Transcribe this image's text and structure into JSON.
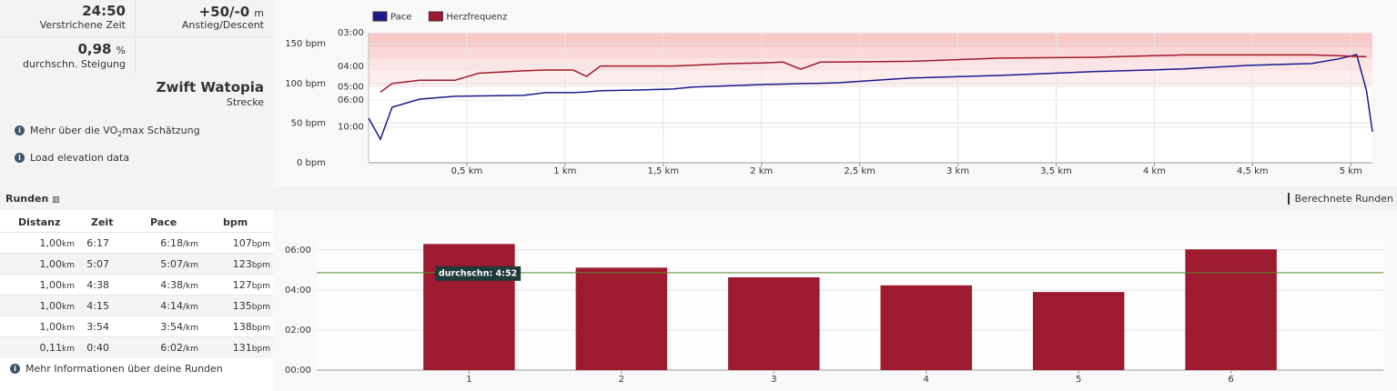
{
  "stats": [
    {
      "value": "24:50",
      "label": "Verstrichene Zeit"
    },
    {
      "value": "+50/-0",
      "unit": "m",
      "label": "Anstieg/Descent"
    },
    {
      "value": "0,98",
      "unit": "%",
      "label": "durchschn. Steigung"
    },
    {
      "value": "Zwift Watopia",
      "label": "Strecke"
    }
  ],
  "links": {
    "vo2max": [
      "Mehr über die VO",
      "2",
      "max Schätzung"
    ],
    "elevation": "Load elevation data",
    "laps_info": "Mehr Informationen über deine Runden"
  },
  "laps": {
    "title": "Runden",
    "calculated": "Berechnete Runden",
    "columns": [
      "Distanz",
      "Zeit",
      "Pace",
      "bpm"
    ],
    "rows": [
      [
        "1,00",
        "km",
        "6:17",
        "6:18",
        "/km",
        "107",
        "bpm"
      ],
      [
        "1,00",
        "km",
        "5:07",
        "5:07",
        "/km",
        "123",
        "bpm"
      ],
      [
        "1,00",
        "km",
        "4:38",
        "4:38",
        "/km",
        "127",
        "bpm"
      ],
      [
        "1,00",
        "km",
        "4:15",
        "4:14",
        "/km",
        "135",
        "bpm"
      ],
      [
        "1,00",
        "km",
        "3:54",
        "3:54",
        "/km",
        "138",
        "bpm"
      ],
      [
        "0,11",
        "km",
        "0:40",
        "6:02",
        "/km",
        "131",
        "bpm"
      ]
    ]
  },
  "chart_data": [
    {
      "type": "line",
      "x": [
        0,
        0.06,
        0.12,
        0.26,
        0.44,
        0.56,
        0.79,
        0.9,
        1.04,
        1.11,
        1.18,
        1.37,
        1.55,
        1.65,
        1.83,
        2.02,
        2.11,
        2.2,
        2.3,
        2.39,
        2.76,
        3.22,
        3.69,
        4.15,
        4.48,
        4.8,
        4.94,
        5.03,
        5.08,
        5.11
      ],
      "series": [
        {
          "name": "Pace",
          "color": "#1a1a8c",
          "axis": "y2",
          "values": [
            8.2,
            14.3,
            6.71,
            5.91,
            5.68,
            5.65,
            5.61,
            5.4,
            5.4,
            5.35,
            5.27,
            5.22,
            5.15,
            5.03,
            4.95,
            4.87,
            4.85,
            4.82,
            4.8,
            4.77,
            4.52,
            4.39,
            4.22,
            4.1,
            3.96,
            3.89,
            3.72,
            3.58,
            5.27,
            11.3
          ]
        },
        {
          "name": "Herzfrequenz",
          "color": "#a0192e",
          "values": [
            null,
            89,
            100,
            104,
            104,
            113,
            116,
            117,
            117,
            109,
            122,
            122,
            122,
            123,
            125,
            126,
            127,
            118,
            127,
            127,
            128,
            132,
            133,
            136,
            136,
            136,
            135,
            134,
            134,
            null
          ]
        }
      ],
      "xlim": [
        0,
        5.11
      ],
      "xticks": [
        {
          "value": 0.5,
          "label": "0,5 km"
        },
        {
          "value": 1,
          "label": "1 km"
        },
        {
          "value": 1.5,
          "label": "1,5 km"
        },
        {
          "value": 2,
          "label": "2 km"
        },
        {
          "value": 2.5,
          "label": "2,5 km"
        },
        {
          "value": 3,
          "label": "3 km"
        },
        {
          "value": 3.5,
          "label": "3,5 km"
        },
        {
          "value": 4,
          "label": "4 km"
        },
        {
          "value": 4.5,
          "label": "4,5 km"
        },
        {
          "value": 5,
          "label": "5 km"
        }
      ],
      "ylim": [
        0,
        164
      ],
      "yticks": [
        {
          "value": 0,
          "label": "0 bpm"
        },
        {
          "value": 50,
          "label": "50 bpm"
        },
        {
          "value": 100,
          "label": "100 bpm"
        },
        {
          "value": 150,
          "label": "150 bpm"
        }
      ],
      "y2lim": [
        3,
        86
      ],
      "y2scale": "reciprocal",
      "y2ticks": [
        {
          "value": 3,
          "label": "03:00"
        },
        {
          "value": 4,
          "label": "04:00"
        },
        {
          "value": 5,
          "label": "05:00"
        },
        {
          "value": 6,
          "label": "06:00"
        },
        {
          "value": 10,
          "label": "10:00"
        }
      ],
      "grid": true
    },
    {
      "type": "bar",
      "categories": [
        "1",
        "2",
        "3",
        "4",
        "5",
        "6"
      ],
      "values": [
        6.3,
        5.117,
        4.633,
        4.233,
        3.9,
        6.033
      ],
      "color": "#9e1a2e",
      "ylim": [
        0,
        6.45
      ],
      "yticks": [
        {
          "value": 0,
          "label": "00:00"
        },
        {
          "value": 2,
          "label": "02:00"
        },
        {
          "value": 4,
          "label": "04:00"
        },
        {
          "value": 6,
          "label": "06:00"
        }
      ],
      "grid": true,
      "average": {
        "value": 4.867,
        "label": "durchschn: 4:52",
        "color": "#5a8a2a"
      }
    }
  ]
}
